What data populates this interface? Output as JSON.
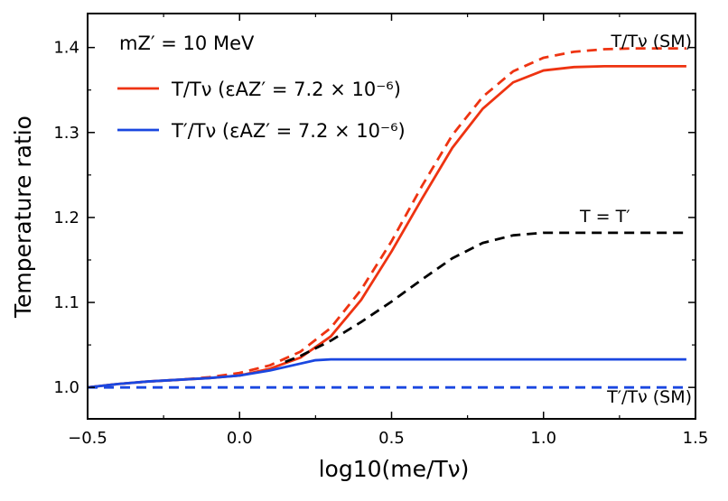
{
  "chart_data": {
    "type": "line",
    "xlabel": "log10(me/Tν)",
    "ylabel": "Temperature ratio",
    "xlim": [
      -0.5,
      1.5
    ],
    "ylim": [
      0.963,
      1.44
    ],
    "xticks": [
      -0.5,
      0.0,
      0.5,
      1.0,
      1.5
    ],
    "xtick_labels": [
      "−0.5",
      "0.0",
      "0.5",
      "1.0",
      "1.5"
    ],
    "yticks": [
      1.0,
      1.1,
      1.2,
      1.3,
      1.4
    ],
    "ytick_labels": [
      "1.0",
      "1.1",
      "1.2",
      "1.3",
      "1.4"
    ],
    "grid": false,
    "param_label": "mZ′ = 10 MeV",
    "legend": [
      {
        "label": "T/Tν (εAZ′ = 7.2 × 10⁻⁶)",
        "color": "#ee3311"
      },
      {
        "label": "T′/Tν (εAZ′ = 7.2 × 10⁻⁶)",
        "color": "#1a47e0"
      }
    ],
    "annotations": [
      {
        "text": "T/Tν (SM)",
        "near": "top-right above red dashed"
      },
      {
        "text": "T = T′",
        "near": "above black dashed curve"
      },
      {
        "text": "T′/Tν (SM)",
        "near": "bottom-right below blue dashed"
      }
    ],
    "series": [
      {
        "name": "T/Tν (εAZ′ = 7.2 × 10⁻⁶)",
        "color": "#ee3311",
        "style": "solid",
        "x": [
          -0.5,
          -0.4,
          -0.3,
          -0.2,
          -0.1,
          0.0,
          0.1,
          0.2,
          0.3,
          0.4,
          0.5,
          0.6,
          0.7,
          0.8,
          0.9,
          1.0,
          1.1,
          1.2,
          1.3,
          1.47
        ],
        "y": [
          1.0,
          1.004,
          1.007,
          1.009,
          1.011,
          1.014,
          1.022,
          1.035,
          1.06,
          1.103,
          1.16,
          1.222,
          1.282,
          1.328,
          1.359,
          1.373,
          1.377,
          1.378,
          1.378,
          1.378
        ]
      },
      {
        "name": "T/Tν (SM)",
        "color": "#ee3311",
        "style": "dashed",
        "x": [
          -0.5,
          -0.4,
          -0.3,
          -0.2,
          -0.1,
          0.0,
          0.1,
          0.2,
          0.3,
          0.4,
          0.5,
          0.6,
          0.7,
          0.8,
          0.9,
          1.0,
          1.1,
          1.2,
          1.3,
          1.47
        ],
        "y": [
          1.0,
          1.004,
          1.007,
          1.009,
          1.012,
          1.017,
          1.026,
          1.042,
          1.07,
          1.115,
          1.172,
          1.237,
          1.297,
          1.342,
          1.372,
          1.388,
          1.395,
          1.398,
          1.399,
          1.399
        ]
      },
      {
        "name": "T = T′",
        "color": "#000000",
        "style": "dashed",
        "x": [
          0.15,
          0.2,
          0.3,
          0.4,
          0.5,
          0.6,
          0.7,
          0.8,
          0.9,
          1.0,
          1.1,
          1.2,
          1.3,
          1.47
        ],
        "y": [
          1.03,
          1.037,
          1.055,
          1.077,
          1.101,
          1.127,
          1.152,
          1.17,
          1.179,
          1.182,
          1.182,
          1.182,
          1.182,
          1.182
        ]
      },
      {
        "name": "T′/Tν (εAZ′ = 7.2 × 10⁻⁶)",
        "color": "#1a47e0",
        "style": "solid",
        "x": [
          -0.5,
          -0.4,
          -0.3,
          -0.2,
          -0.1,
          0.0,
          0.1,
          0.2,
          0.25,
          0.3,
          0.5,
          0.8,
          1.0,
          1.2,
          1.47
        ],
        "y": [
          1.0,
          1.004,
          1.007,
          1.009,
          1.011,
          1.014,
          1.02,
          1.028,
          1.032,
          1.033,
          1.033,
          1.033,
          1.033,
          1.033,
          1.033
        ]
      },
      {
        "name": "T′/Tν (SM)",
        "color": "#1a47e0",
        "style": "dashed",
        "x": [
          -0.5,
          1.47
        ],
        "y": [
          1.0,
          1.0
        ]
      }
    ]
  }
}
